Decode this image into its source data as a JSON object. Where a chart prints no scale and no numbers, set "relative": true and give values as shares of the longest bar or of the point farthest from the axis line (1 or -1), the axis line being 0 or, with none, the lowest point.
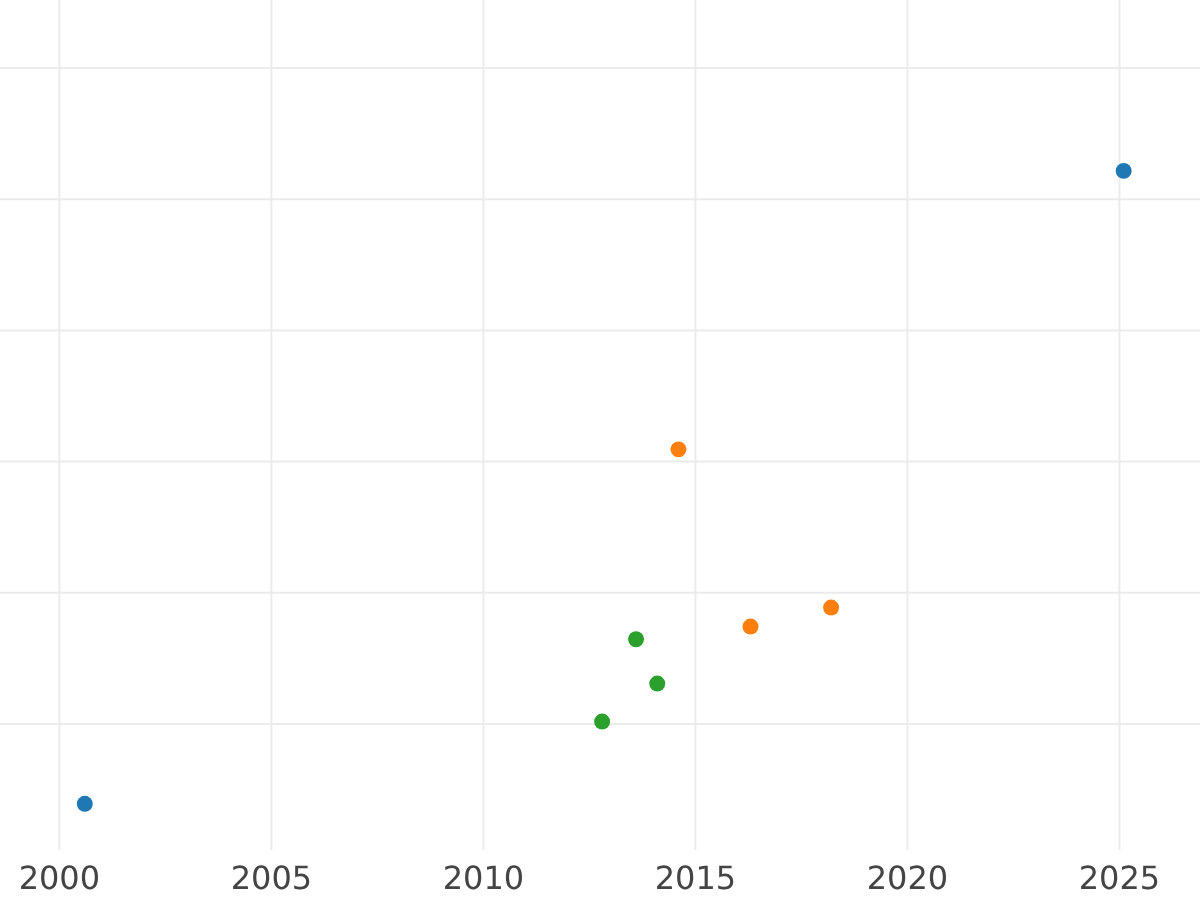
{
  "chart_data": {
    "type": "scatter",
    "relative": true,
    "grid": true,
    "marker": "circle",
    "xlim": [
      1998.6,
      2026.9
    ],
    "xticks": [
      2000,
      2005,
      2010,
      2015,
      2020,
      2025
    ],
    "series": [
      {
        "color": "#1f77b4",
        "x": [
          2000.6,
          2025.1
        ],
        "values": [
          0,
          1
        ]
      },
      {
        "color": "#ff7f0e",
        "x": [
          2014.6,
          2016.3,
          2018.2
        ],
        "values": [
          0.56,
          0.28,
          0.31
        ]
      },
      {
        "color": "#2ca02c",
        "x": [
          2013.6,
          2014.1,
          2012.8
        ],
        "values": [
          0.26,
          0.19,
          0.13
        ]
      }
    ]
  }
}
